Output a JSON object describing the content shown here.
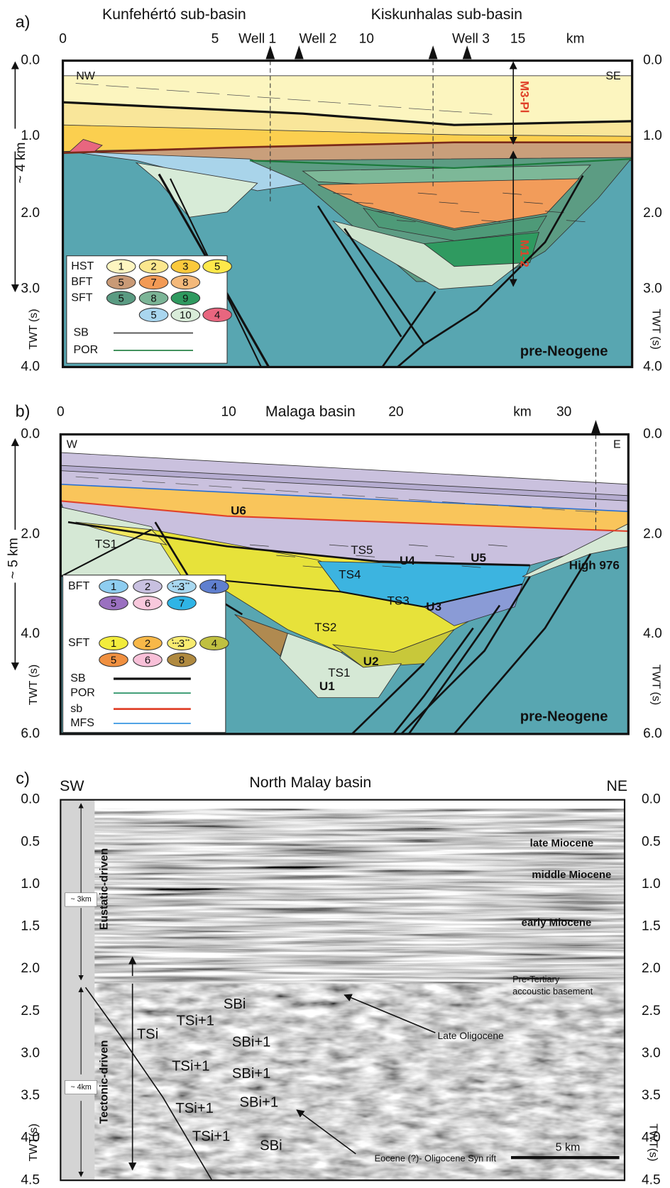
{
  "panels": [
    {
      "label": "a)",
      "titles": [
        "Kunfehértó sub-basin",
        "Kiskunhalas sub-basin"
      ],
      "x_ticks": [
        "0",
        "5",
        "10",
        "15",
        "km"
      ],
      "wells": [
        "Well 1",
        "Well 2",
        "Well 3"
      ],
      "y_ticks": [
        "0.0",
        "1.0",
        "2.0",
        "3.0",
        "4.0"
      ],
      "depth_label": "~ 4 km",
      "axis_label": "TWT (s)",
      "corners": [
        "NW",
        "SE"
      ],
      "annotations": [
        "M3-Pl",
        "M1-2",
        "pre-Neogene"
      ],
      "legend": {
        "rows": [
          {
            "label": "HST",
            "items": [
              "1",
              "2",
              "3",
              "5"
            ]
          },
          {
            "label": "BFT",
            "items": [
              "5",
              "7",
              "8"
            ]
          },
          {
            "label": "SFT",
            "items": [
              "5",
              "8",
              "9"
            ]
          },
          {
            "items": [
              "5",
              "10",
              "4"
            ]
          }
        ],
        "lines": [
          "SB",
          "POR"
        ]
      }
    },
    {
      "label": "b)",
      "title": "Malaga basin",
      "x_ticks": [
        "0",
        "10",
        "20",
        "km",
        "30"
      ],
      "y_ticks": [
        "0.0",
        "2.0",
        "4.0",
        "6.0"
      ],
      "depth_label": "~ 5 km",
      "axis_label": "TWT (s)",
      "corners": [
        "W",
        "E"
      ],
      "annotations": [
        "U6",
        "TS1",
        "TS5",
        "U5",
        "TS4",
        "U4",
        "High 976",
        "TS3",
        "U3",
        "TS2",
        "U2",
        "TS1",
        "U1",
        "pre-Neogene"
      ],
      "legend": {
        "rows": [
          {
            "label": "BFT",
            "items": [
              "1",
              "2",
              "3",
              "4"
            ]
          },
          {
            "items": [
              "5",
              "6",
              "7"
            ]
          },
          {
            "label": "SFT",
            "items": [
              "1",
              "2",
              "3",
              "4"
            ]
          },
          {
            "items": [
              "5",
              "6",
              "8"
            ]
          }
        ],
        "lines": [
          "SB",
          "POR",
          "sb",
          "MFS"
        ]
      }
    },
    {
      "label": "c)",
      "title": "North Malay basin",
      "corners": [
        "SW",
        "NE"
      ],
      "y_ticks": [
        "0.0",
        "0.5",
        "1.0",
        "1.5",
        "2.0",
        "2.5",
        "3.0",
        "3.5",
        "4.0",
        "4.5"
      ],
      "axis_label": "TWT(s)",
      "depth_labels": [
        "~ 3km",
        "~ 4km"
      ],
      "drivers": [
        "Eustatic-driven",
        "Tectonic-driven"
      ],
      "ages": [
        "late Miocene",
        "middle Miocene",
        "early Miocene"
      ],
      "basement": [
        "Pre-Tertiary",
        "accoustic basement"
      ],
      "arrows": [
        "Late Oligocene",
        "Eocene (?)- Oligocene Syn rift"
      ],
      "scale": "5 km",
      "sequences": [
        "SBi",
        "TSi+1",
        "TSi",
        "SBi+1",
        "TSi+1",
        "SBi+1",
        "TSi+1",
        "SBi+1",
        "TSi+1",
        "SBi"
      ]
    }
  ]
}
